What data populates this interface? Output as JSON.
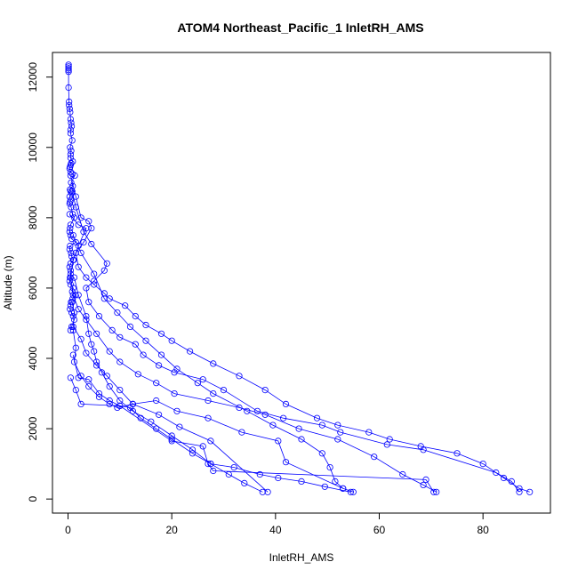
{
  "chart_data": {
    "type": "line",
    "title": "ATOM4 Northeast_Pacific_1 InletRH_AMS",
    "xlabel": "InletRH_AMS",
    "ylabel": "Altitude (m)",
    "xlim": [
      -3,
      93
    ],
    "ylim": [
      -400,
      12700
    ],
    "x_ticks": [
      0,
      20,
      40,
      60,
      80
    ],
    "y_ticks": [
      0,
      2000,
      4000,
      6000,
      8000,
      10000,
      12000
    ],
    "grid": false,
    "marker": "open-circle",
    "color": "#0000ff",
    "series": [
      {
        "x": [
          0.1,
          0.1,
          0.1,
          0.1,
          0.1,
          0.1,
          0.2,
          0.2,
          0.3,
          0.4,
          0.5,
          0.6,
          0.7,
          0.5,
          0.5,
          0.8,
          0.4,
          0.6,
          0.5,
          0.5,
          0.9,
          0.6,
          0.5,
          0.4,
          0.3,
          0.5,
          0.8,
          1.3,
          0.6,
          0.9,
          0.4,
          0.5,
          0.7,
          0.3,
          0.5,
          0.4,
          0.3,
          0.6,
          0.9,
          1.2,
          0.5,
          0.4,
          0.3,
          0.5,
          0.7,
          1.5,
          0.4,
          0.3,
          0.6,
          0.7,
          1.1,
          0.5,
          0.3,
          0.5,
          0.5,
          0.4,
          0.3,
          0.5,
          1.0,
          0.8,
          1.4,
          0.9,
          0.6,
          0.5,
          0.4,
          0.7,
          1.0,
          1.2,
          0.7,
          0.5
        ],
        "y": [
          12350,
          12300,
          12250,
          12200,
          12150,
          11700,
          11300,
          11200,
          11100,
          11000,
          10800,
          10700,
          10600,
          10500,
          10400,
          10200,
          10000,
          9900,
          9800,
          9700,
          9600,
          9550,
          9500,
          9450,
          9400,
          9300,
          9250,
          9200,
          9000,
          8900,
          8800,
          8750,
          8700,
          8600,
          8500,
          8450,
          8400,
          8300,
          8100,
          8000,
          7800,
          7700,
          7600,
          7500,
          7400,
          7300,
          7200,
          7100,
          7000,
          6900,
          6800,
          6700,
          6600,
          6500,
          6400,
          6300,
          6200,
          6100,
          6000,
          5900,
          5800,
          5700,
          5600,
          5500,
          5400,
          5300,
          5200,
          5100,
          4900,
          4800
        ]
      },
      {
        "x": [
          0.5,
          1.5,
          2.5,
          4.0,
          4.5,
          3.0,
          1.5,
          2.0,
          3.5,
          5.0,
          7.0,
          8.0,
          11.0,
          13.0,
          15.0,
          18.0,
          20.0,
          23.5,
          28.0,
          33.0,
          38.0,
          42.0,
          48.0,
          52.0,
          58.0,
          62.0,
          68.0,
          75.0,
          80.0,
          84.0,
          87.0,
          89.0
        ],
        "y": [
          9200,
          8600,
          8000,
          7900,
          7700,
          7300,
          7000,
          6600,
          6300,
          6100,
          5850,
          5700,
          5500,
          5200,
          4950,
          4700,
          4500,
          4200,
          3850,
          3500,
          3100,
          2700,
          2300,
          2100,
          1900,
          1700,
          1500,
          1300,
          1000,
          600,
          300,
          200
        ]
      },
      {
        "x": [
          0.8,
          1.5,
          3.0,
          4.5,
          7.5,
          7.0,
          5.0,
          3.5,
          4.0,
          6.0,
          8.5,
          10.0,
          13.0,
          14.5,
          17.5,
          20.5,
          26.0,
          30.0,
          36.5,
          41.5,
          49.0,
          52.5,
          61.5,
          68.5,
          82.5,
          85.5,
          87.0
        ],
        "y": [
          8750,
          8300,
          7600,
          7250,
          6700,
          6500,
          6200,
          6000,
          5600,
          5200,
          4800,
          4600,
          4400,
          4100,
          3800,
          3600,
          3400,
          3100,
          2500,
          2300,
          2100,
          1900,
          1550,
          1400,
          750,
          500,
          200
        ]
      },
      {
        "x": [
          0.3,
          2.0,
          3.5,
          2.0,
          1.0,
          0.5,
          1.0,
          2.0,
          3.5,
          5.5,
          8.0,
          10.0,
          13.5,
          17.0,
          20.5,
          27.0,
          33.0,
          38.0,
          44.5,
          52.0,
          59.0,
          64.5,
          68.5,
          71.0
        ],
        "y": [
          8100,
          7800,
          7700,
          7200,
          6800,
          6300,
          5800,
          5400,
          5100,
          4700,
          4200,
          3900,
          3550,
          3300,
          3000,
          2800,
          2600,
          2400,
          2000,
          1700,
          1200,
          700,
          400,
          200
        ]
      },
      {
        "x": [
          1.0,
          2.5,
          5.0,
          7.0,
          9.5,
          12.0,
          15.0,
          18.0,
          21.0,
          25.0,
          28.0,
          34.5,
          39.5,
          45.0,
          49.0,
          50.5,
          51.5,
          53.0,
          55.0
        ],
        "y": [
          7500,
          7000,
          6400,
          5700,
          5300,
          4900,
          4500,
          4100,
          3700,
          3300,
          3000,
          2500,
          2100,
          1700,
          1300,
          900,
          500,
          300,
          200
        ]
      },
      {
        "x": [
          1.2,
          2.0,
          3.5,
          4.0,
          4.5,
          5.0,
          5.5,
          6.5,
          8.0,
          10.0,
          12.5,
          16.0,
          20.0,
          24.0,
          27.5,
          31.0,
          34.0,
          37.5
        ],
        "y": [
          6300,
          5800,
          5200,
          4700,
          4400,
          4200,
          3900,
          3600,
          3200,
          2800,
          2500,
          2200,
          1800,
          1400,
          1000,
          700,
          450,
          200
        ]
      },
      {
        "x": [
          0.8,
          1.2,
          1.0,
          2.5,
          3.5,
          5.5,
          7.5,
          10.0,
          12.5,
          17.5,
          21.5,
          27.5,
          38.5
        ],
        "y": [
          5600,
          5300,
          4900,
          4550,
          4150,
          3800,
          3500,
          3100,
          2700,
          2400,
          2050,
          1650,
          200
        ]
      },
      {
        "x": [
          1.0,
          1.5,
          1.2,
          2.5,
          4.0,
          6.0,
          8.0,
          9.5,
          12.5,
          17.0,
          21.0,
          27.0,
          33.5,
          40.5,
          42.0,
          53.0
        ],
        "y": [
          4800,
          4300,
          3900,
          3500,
          3200,
          2900,
          2700,
          2600,
          2700,
          2800,
          2500,
          2300,
          1900,
          1650,
          1050,
          300
        ]
      },
      {
        "x": [
          1.0,
          2.0,
          4.0,
          6.0,
          8.0,
          10.0,
          12.0,
          14.0,
          17.0,
          20.0,
          24.0,
          27.5,
          32.0,
          37.0,
          40.5,
          45.0,
          49.5,
          54.5
        ],
        "y": [
          4100,
          3450,
          3400,
          3000,
          2800,
          2650,
          2600,
          2300,
          2000,
          1700,
          1300,
          1000,
          900,
          700,
          600,
          500,
          350,
          200
        ]
      },
      {
        "x": [
          0.5,
          1.5,
          2.5,
          10.0,
          20.0,
          26.0,
          27.0,
          28.0,
          69.0,
          70.5
        ],
        "y": [
          3450,
          3100,
          2700,
          2650,
          1650,
          1500,
          1000,
          800,
          550,
          200
        ]
      }
    ]
  }
}
